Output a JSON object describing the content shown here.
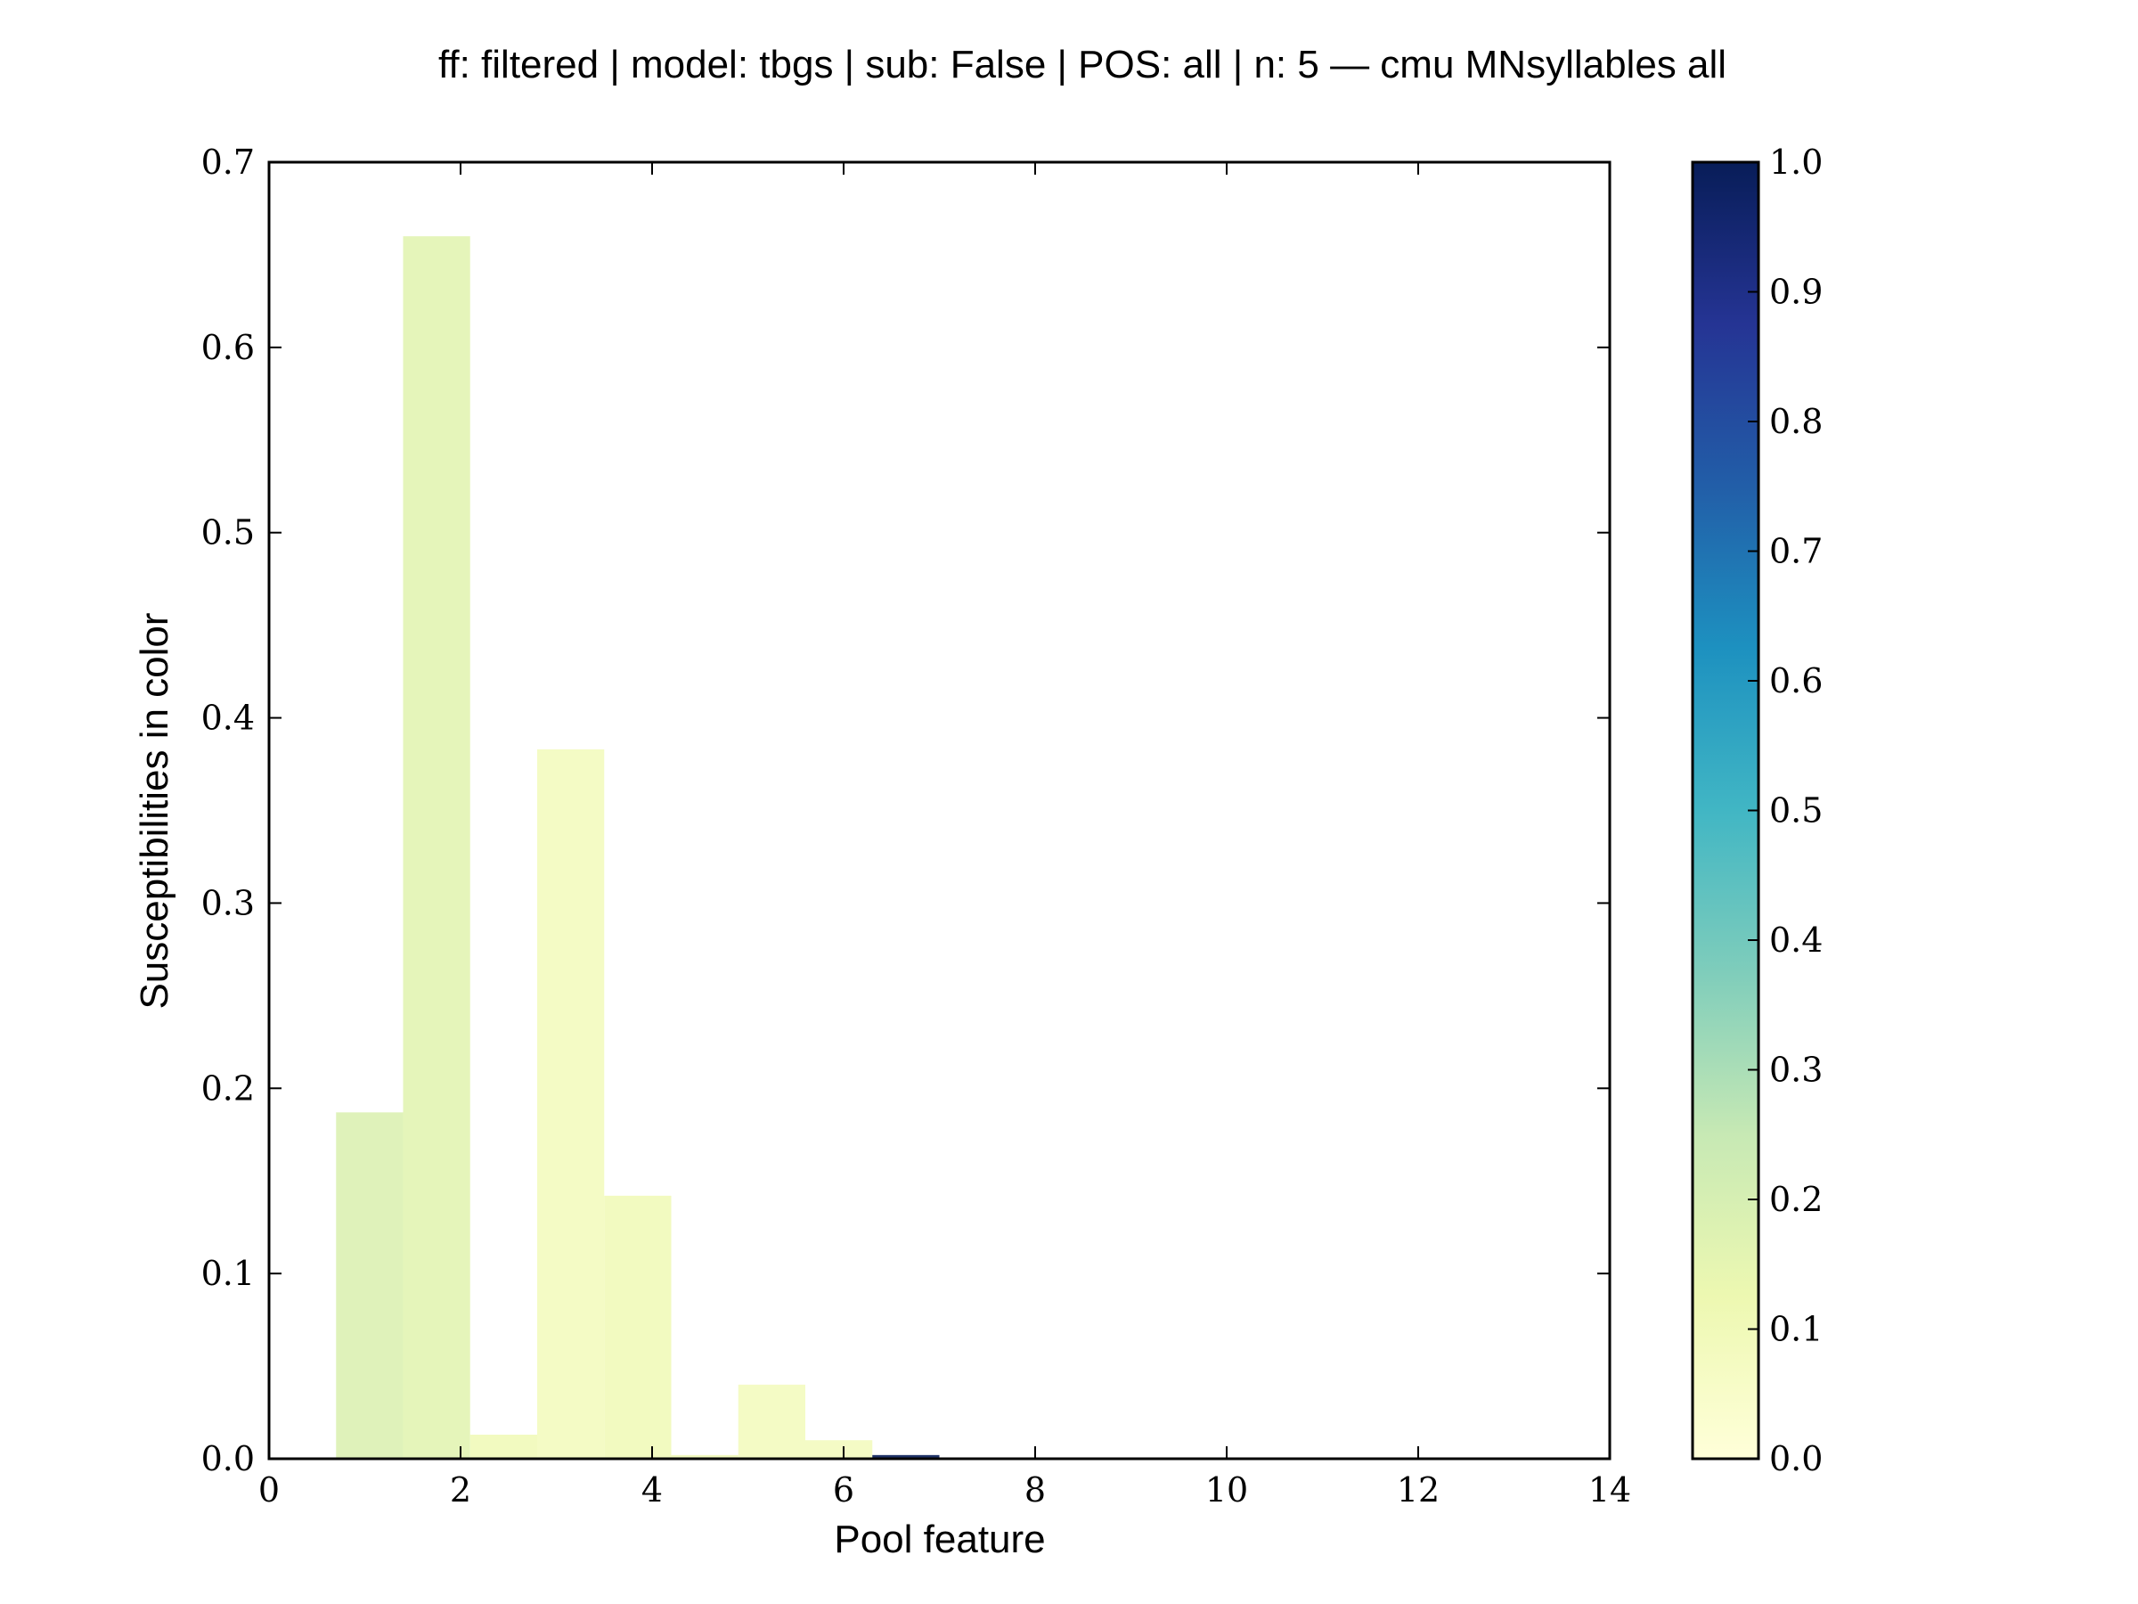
{
  "chart_data": {
    "type": "bar",
    "title": "ff: filtered | model: tbgs | sub: False | POS: all | n: 5 — cmu MNsyllables all",
    "xlabel": "Pool feature",
    "ylabel": "Susceptibilities in color",
    "xlim": [
      0,
      14
    ],
    "ylim": [
      0,
      0.7
    ],
    "xticks": [
      "0",
      "2",
      "4",
      "6",
      "8",
      "10",
      "12",
      "14"
    ],
    "yticks": [
      "0.0",
      "0.1",
      "0.2",
      "0.3",
      "0.4",
      "0.5",
      "0.6",
      "0.7"
    ],
    "grid": false,
    "bar_width": 0.7,
    "bars": [
      {
        "x": 1.05,
        "value": 0.187,
        "color_value": 0.18
      },
      {
        "x": 1.75,
        "value": 0.66,
        "color_value": 0.16
      },
      {
        "x": 2.45,
        "value": 0.013,
        "color_value": 0.1
      },
      {
        "x": 3.15,
        "value": 0.383,
        "color_value": 0.08
      },
      {
        "x": 3.85,
        "value": 0.142,
        "color_value": 0.1
      },
      {
        "x": 4.55,
        "value": 0.002,
        "color_value": 0.1
      },
      {
        "x": 5.25,
        "value": 0.04,
        "color_value": 0.08
      },
      {
        "x": 5.95,
        "value": 0.01,
        "color_value": 0.08
      },
      {
        "x": 6.65,
        "value": 0.002,
        "color_value": 1.0
      }
    ],
    "colorbar": {
      "range": [
        0,
        1
      ],
      "ticks": [
        "0.0",
        "0.1",
        "0.2",
        "0.3",
        "0.4",
        "0.5",
        "0.6",
        "0.7",
        "0.8",
        "0.9",
        "1.0"
      ],
      "colormap": "YlGnBu",
      "colors": [
        "#ffffd9",
        "#edf8b1",
        "#c7e9b4",
        "#7fcdbb",
        "#41b6c4",
        "#1d91c0",
        "#225ea8",
        "#253494",
        "#081d58"
      ]
    }
  }
}
